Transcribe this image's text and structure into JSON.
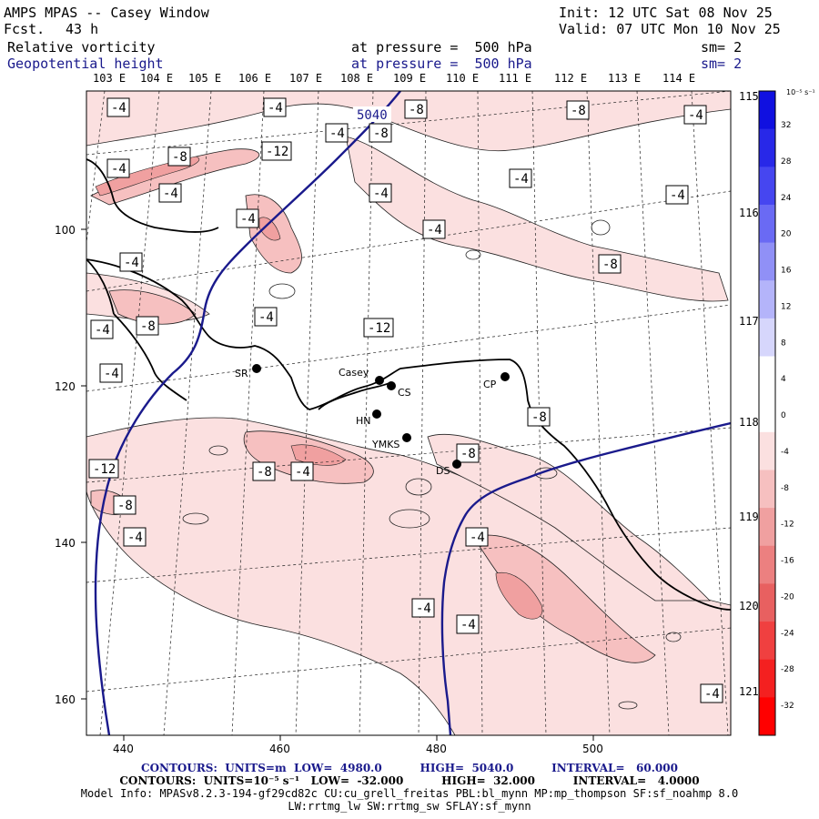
{
  "header": {
    "title": "AMPS MPAS -- Casey Window",
    "fcst_label": "Fcst.",
    "fcst_value": "43 h",
    "init": "Init: 12 UTC Sat 08 Nov 25",
    "valid": "Valid: 07 UTC Mon 10 Nov 25",
    "field1_name": "Relative vorticity",
    "field1_level": "at pressure =  500 hPa",
    "field1_sm": "sm= 2",
    "field2_name": "Geopotential height",
    "field2_level": "at pressure =  500 hPa",
    "field2_sm": "sm= 2"
  },
  "map": {
    "lon_labels_top": [
      "103 E",
      "104 E",
      "105 E",
      "106 E",
      "107 E",
      "108 E",
      "109 E",
      "110 E",
      "111 E",
      "112 E",
      "113 E",
      "114 E"
    ],
    "lon_labels_right": [
      "115 E",
      "116 E",
      "117 E",
      "118 E",
      "119 E",
      "120 E",
      "121 E"
    ],
    "x_ticks": [
      "440",
      "460",
      "480",
      "500"
    ],
    "y_ticks": [
      "100",
      "120",
      "140",
      "160"
    ],
    "height_contour_label": "5040",
    "stations": [
      {
        "code": "SR"
      },
      {
        "code": "Casey"
      },
      {
        "code": "CS"
      },
      {
        "code": "CP"
      },
      {
        "code": "HN"
      },
      {
        "code": "YMKS"
      },
      {
        "code": "DS"
      }
    ],
    "vorticity_labels": [
      "-4",
      "-4",
      "-8",
      "-8",
      "-4",
      "-8",
      "-4",
      "-12",
      "-8",
      "-4",
      "-4",
      "-4",
      "-8",
      "-4",
      "-4",
      "-4",
      "-4",
      "-8",
      "-4",
      "-4",
      "-4",
      "-8",
      "-12",
      "-4",
      "-8",
      "-8",
      "-4",
      "-8",
      "-12",
      "-8",
      "-4",
      "-4",
      "-4",
      "-4",
      "-4"
    ]
  },
  "colorbar": {
    "unit": "10⁻⁵ s⁻¹",
    "tick_labels": [
      "32",
      "28",
      "24",
      "20",
      "16",
      "12",
      "8",
      "4",
      "0",
      "-4",
      "-8",
      "-12",
      "-16",
      "-20",
      "-24",
      "-28",
      "-32"
    ],
    "colors_top_to_bottom": [
      "#1010e0",
      "#2828e8",
      "#4646f0",
      "#6a6af4",
      "#9090f6",
      "#b4b4fa",
      "#d6d6fc",
      "#ffffff",
      "#ffffff",
      "#fbe0e0",
      "#f6c0c0",
      "#f0a0a0",
      "#ec8080",
      "#e86060",
      "#f04040",
      "#f42020",
      "#ff0000"
    ]
  },
  "footer": {
    "line1": "CONTOURS:  UNITS=m  LOW=  4980.0          HIGH=  5040.0          INTERVAL=   60.000",
    "line2": "CONTOURS:  UNITS=10⁻⁵ s⁻¹   LOW=  -32.000          HIGH=  32.000          INTERVAL=   4.0000",
    "line3": "Model Info: MPASv8.2.3-194-gf29cd82c CU:cu_grell_freitas PBL:bl_mynn MP:mp_thompson SF:sf_noahmp 8.0",
    "line4": "LW:rrtmg_lw SW:rrtmg_sw SFLAY:sf_mynn"
  }
}
